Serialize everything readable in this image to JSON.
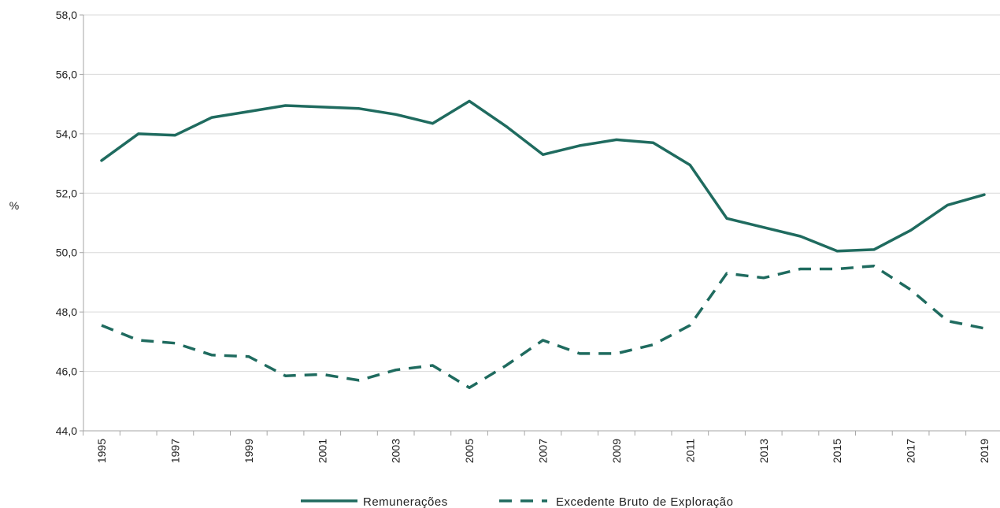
{
  "chart_data": {
    "type": "line",
    "title": "",
    "xlabel": "",
    "ylabel": "%",
    "ylim": [
      44,
      58
    ],
    "yticks": [
      "44,0",
      "46,0",
      "48,0",
      "50,0",
      "52,0",
      "54,0",
      "56,0",
      "58,0"
    ],
    "x": [
      1995,
      1996,
      1997,
      1998,
      1999,
      2000,
      2001,
      2002,
      2003,
      2004,
      2005,
      2006,
      2007,
      2008,
      2009,
      2010,
      2011,
      2012,
      2013,
      2014,
      2015,
      2016,
      2017,
      2018,
      2019
    ],
    "xtick_labels": [
      "1995",
      "1997",
      "1999",
      "2001",
      "2003",
      "2005",
      "2007",
      "2009",
      "2011",
      "2013",
      "2015",
      "2017",
      "2019"
    ],
    "grid": true,
    "legend_position": "bottom",
    "series": [
      {
        "name": "Remunerações",
        "style": "solid",
        "color": "#1f6b5f",
        "values": [
          53.1,
          54.0,
          53.95,
          54.55,
          54.75,
          54.95,
          54.9,
          54.85,
          54.65,
          54.35,
          55.1,
          54.25,
          53.3,
          53.6,
          53.8,
          53.7,
          52.95,
          51.15,
          50.85,
          50.55,
          50.05,
          50.1,
          50.75,
          51.6,
          51.95
        ]
      },
      {
        "name": "Excedente Bruto de Exploração",
        "style": "dashed",
        "color": "#1f6b5f",
        "values": [
          47.55,
          47.05,
          46.95,
          46.55,
          46.5,
          45.85,
          45.9,
          45.7,
          46.05,
          46.2,
          45.45,
          46.2,
          47.05,
          46.6,
          46.6,
          46.9,
          47.55,
          49.3,
          49.15,
          49.45,
          49.45,
          49.55,
          48.75,
          47.7,
          47.45
        ]
      }
    ]
  }
}
